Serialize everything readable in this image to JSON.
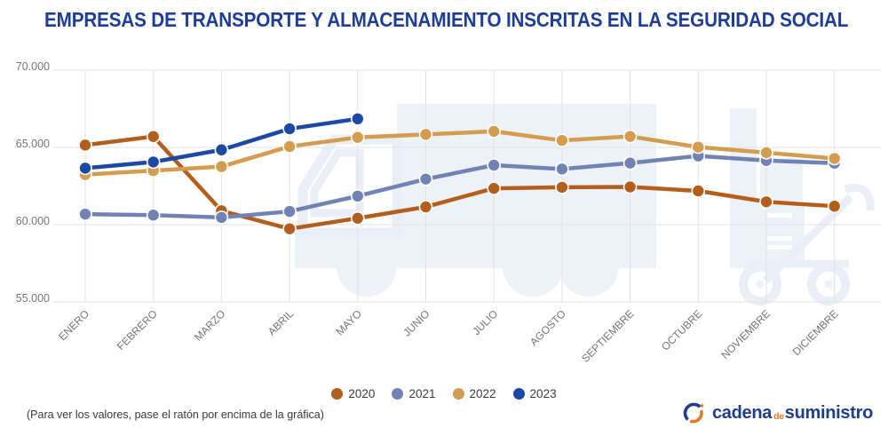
{
  "title": "EMPRESAS DE TRANSPORTE Y ALMACENAMIENTO INSCRITAS EN LA SEGURIDAD SOCIAL",
  "colors": {
    "title": "#1d3d97",
    "grid": "#e2e2e2",
    "axis_label": "#757575",
    "watermark": "#edf1f8",
    "background": "#ffffff"
  },
  "chart_data": {
    "type": "line",
    "title": "EMPRESAS DE TRANSPORTE Y ALMACENAMIENTO INSCRITAS EN LA SEGURIDAD SOCIAL",
    "categories": [
      "ENERO",
      "FEBRERO",
      "MARZO",
      "ABRIL",
      "MAYO",
      "JUNIO",
      "JULIO",
      "AGOSTO",
      "SEPTIEMBRE",
      "OCTUBRE",
      "NOVIEMBRE",
      "DICIEMBRE"
    ],
    "y_axis": {
      "ticks": [
        {
          "label": "70.000",
          "value": 70000
        },
        {
          "label": "65.000",
          "value": 65000
        },
        {
          "label": "60.000",
          "value": 60000
        },
        {
          "label": "55.000",
          "value": 55000
        }
      ]
    },
    "ylim": [
      55000,
      70000
    ],
    "grid": true,
    "legend_position": "bottom",
    "series": [
      {
        "name": "2020",
        "color": "#b45e1d",
        "values": [
          65151,
          65704,
          60902,
          59732,
          60416,
          61151,
          62351,
          62420,
          62443,
          62184,
          61478,
          61196
        ]
      },
      {
        "name": "2021",
        "color": "#7183b4",
        "values": [
          60680,
          60619,
          60467,
          60858,
          61850,
          62950,
          63850,
          63600,
          63990,
          64450,
          64150,
          63980
        ]
      },
      {
        "name": "2022",
        "color": "#d49c4e",
        "values": [
          63240,
          63500,
          63760,
          65060,
          65650,
          65840,
          66040,
          65450,
          65710,
          65020,
          64660,
          64280
        ]
      },
      {
        "name": "2023",
        "color": "#1c49a6",
        "values": [
          63656,
          64058,
          64842,
          66204,
          66850,
          null,
          null,
          null,
          null,
          null,
          null,
          null
        ]
      }
    ]
  },
  "footer": {
    "note": "(Para ver los valores, pase el ratón por encima de la gráfica)"
  },
  "logo": {
    "text_main": "cadena",
    "text_de": "de",
    "text_secondary": "suministro",
    "color_blue": "#1d3d8f",
    "color_orange": "#e87722"
  }
}
